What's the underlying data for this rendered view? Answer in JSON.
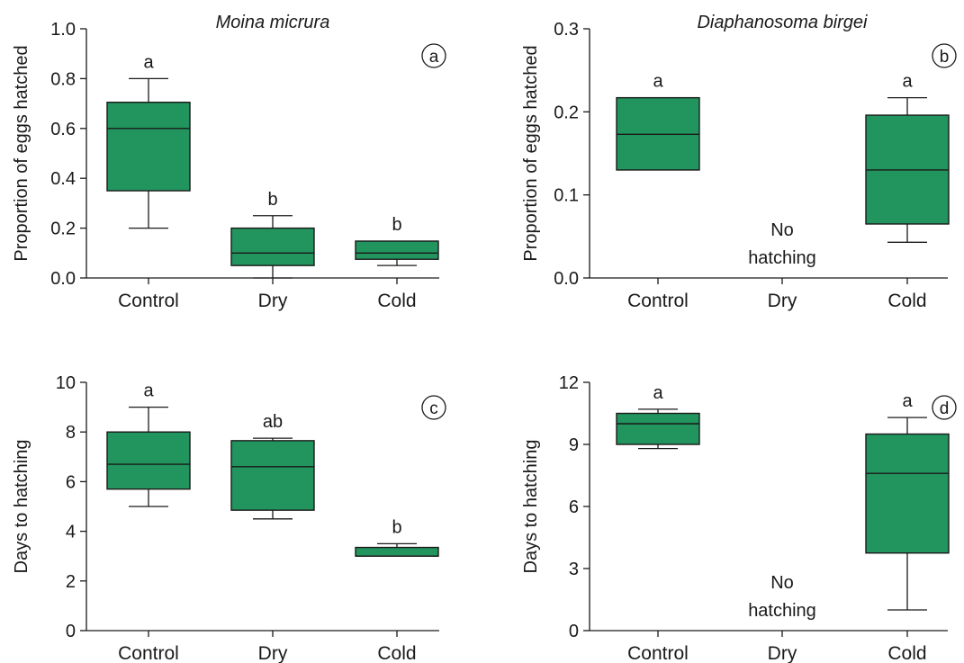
{
  "colors": {
    "box_fill": "#22945e",
    "ink": "#1a1a1a"
  },
  "chart_data": [
    {
      "id": "a",
      "type": "box",
      "title": "Moina micrura",
      "panel_label": "a",
      "xlabel": "",
      "ylabel": "Proportion of eggs hatched",
      "categories": [
        "Control",
        "Dry",
        "Cold"
      ],
      "ylim": [
        0,
        1.0
      ],
      "yticks": [
        0,
        0.2,
        0.4,
        0.6,
        0.8,
        1.0
      ],
      "ytick_labels": [
        "0.0",
        "0.2",
        "0.4",
        "0.6",
        "0.8",
        "1.0"
      ],
      "boxes": [
        {
          "category": "Control",
          "min": 0.2,
          "q1": 0.35,
          "median": 0.6,
          "q3": 0.705,
          "max": 0.8,
          "letter": "a"
        },
        {
          "category": "Dry",
          "min": 0.0,
          "q1": 0.05,
          "median": 0.1,
          "q3": 0.2,
          "max": 0.25,
          "letter": "b"
        },
        {
          "category": "Cold",
          "min": 0.05,
          "q1": 0.075,
          "median": 0.1,
          "q3": 0.148,
          "max": 0.148,
          "letter": "b"
        }
      ],
      "notes": []
    },
    {
      "id": "b",
      "type": "box",
      "title": "Diaphanosoma birgei",
      "panel_label": "b",
      "xlabel": "",
      "ylabel": "Proportion of eggs hatched",
      "categories": [
        "Control",
        "Dry",
        "Cold"
      ],
      "ylim": [
        0,
        0.3
      ],
      "yticks": [
        0,
        0.1,
        0.2,
        0.3
      ],
      "ytick_labels": [
        "0.0",
        "0.1",
        "0.2",
        "0.3"
      ],
      "boxes": [
        {
          "category": "Control",
          "min": 0.13,
          "q1": 0.13,
          "median": 0.173,
          "q3": 0.217,
          "max": 0.217,
          "letter": "a"
        },
        {
          "category": "Cold",
          "min": 0.043,
          "q1": 0.065,
          "median": 0.13,
          "q3": 0.196,
          "max": 0.217,
          "letter": "a"
        }
      ],
      "notes": [
        {
          "category": "Dry",
          "lines": [
            "No",
            "hatching"
          ]
        }
      ]
    },
    {
      "id": "c",
      "type": "box",
      "title": "",
      "panel_label": "c",
      "xlabel": "",
      "ylabel": "Days to hatching",
      "categories": [
        "Control",
        "Dry",
        "Cold"
      ],
      "ylim": [
        0,
        10
      ],
      "yticks": [
        0,
        2,
        4,
        6,
        8,
        10
      ],
      "ytick_labels": [
        "0",
        "2",
        "4",
        "6",
        "8",
        "10"
      ],
      "boxes": [
        {
          "category": "Control",
          "min": 5.0,
          "q1": 5.7,
          "median": 6.7,
          "q3": 8.0,
          "max": 9.0,
          "letter": "a"
        },
        {
          "category": "Dry",
          "min": 4.5,
          "q1": 4.85,
          "median": 6.6,
          "q3": 7.65,
          "max": 7.75,
          "letter": "ab"
        },
        {
          "category": "Cold",
          "min": 3.0,
          "q1": 3.0,
          "median": 3.0,
          "q3": 3.35,
          "max": 3.5,
          "letter": "b"
        }
      ],
      "notes": []
    },
    {
      "id": "d",
      "type": "box",
      "title": "",
      "panel_label": "d",
      "xlabel": "",
      "ylabel": "Days to hatching",
      "categories": [
        "Control",
        "Dry",
        "Cold"
      ],
      "ylim": [
        0,
        12
      ],
      "yticks": [
        0,
        3,
        6,
        9,
        12
      ],
      "ytick_labels": [
        "0",
        "3",
        "6",
        "9",
        "12"
      ],
      "boxes": [
        {
          "category": "Control",
          "min": 8.8,
          "q1": 9.0,
          "median": 10.0,
          "q3": 10.5,
          "max": 10.7,
          "letter": "a"
        },
        {
          "category": "Cold",
          "min": 1.0,
          "q1": 3.75,
          "median": 7.6,
          "q3": 9.5,
          "max": 10.3,
          "letter": "a"
        }
      ],
      "notes": [
        {
          "category": "Dry",
          "lines": [
            "No",
            "hatching"
          ]
        }
      ]
    }
  ]
}
